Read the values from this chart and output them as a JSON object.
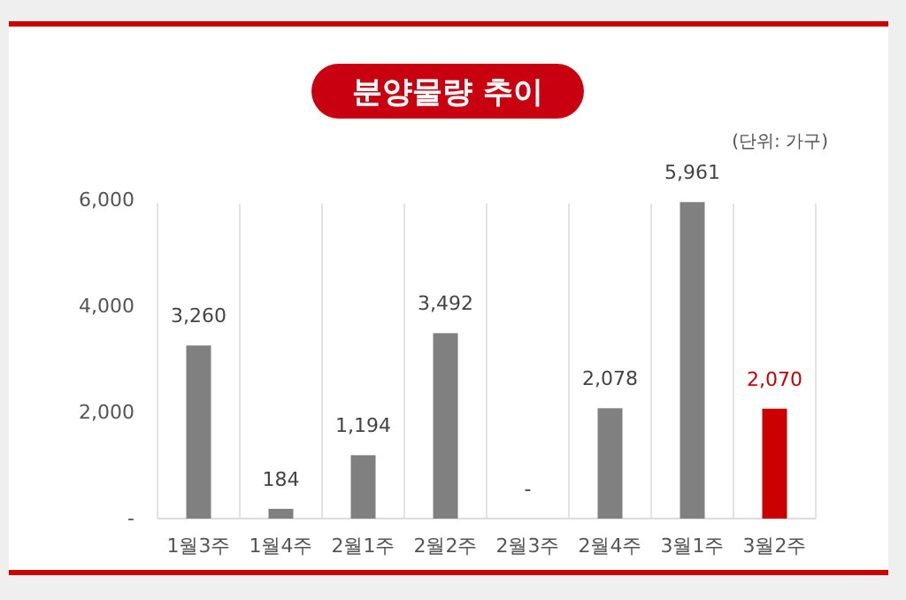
{
  "chart_data": {
    "type": "bar",
    "title": "분양물량 추이",
    "annotations": [
      "(단위: 가구)"
    ],
    "categories": [
      "1월3주",
      "1월4주",
      "2월1주",
      "2월2주",
      "2월3주",
      "2월4주",
      "3월1주",
      "3월2주"
    ],
    "values": [
      3260,
      184,
      1194,
      3492,
      0,
      2078,
      5961,
      2070
    ],
    "value_labels": [
      "3,260",
      "184",
      "1,194",
      "3,492",
      "-",
      "2,078",
      "5,961",
      "2,070"
    ],
    "colors": [
      "#808080",
      "#808080",
      "#808080",
      "#808080",
      "#808080",
      "#808080",
      "#808080",
      "#cc0000"
    ],
    "ylim": [
      0,
      6000
    ],
    "yticks": [
      {
        "value": 0,
        "label": "-"
      },
      {
        "value": 2000,
        "label": "2,000"
      },
      {
        "value": 4000,
        "label": "4,000"
      },
      {
        "value": 6000,
        "label": "6,000"
      }
    ],
    "grid": "x",
    "legend": false
  }
}
